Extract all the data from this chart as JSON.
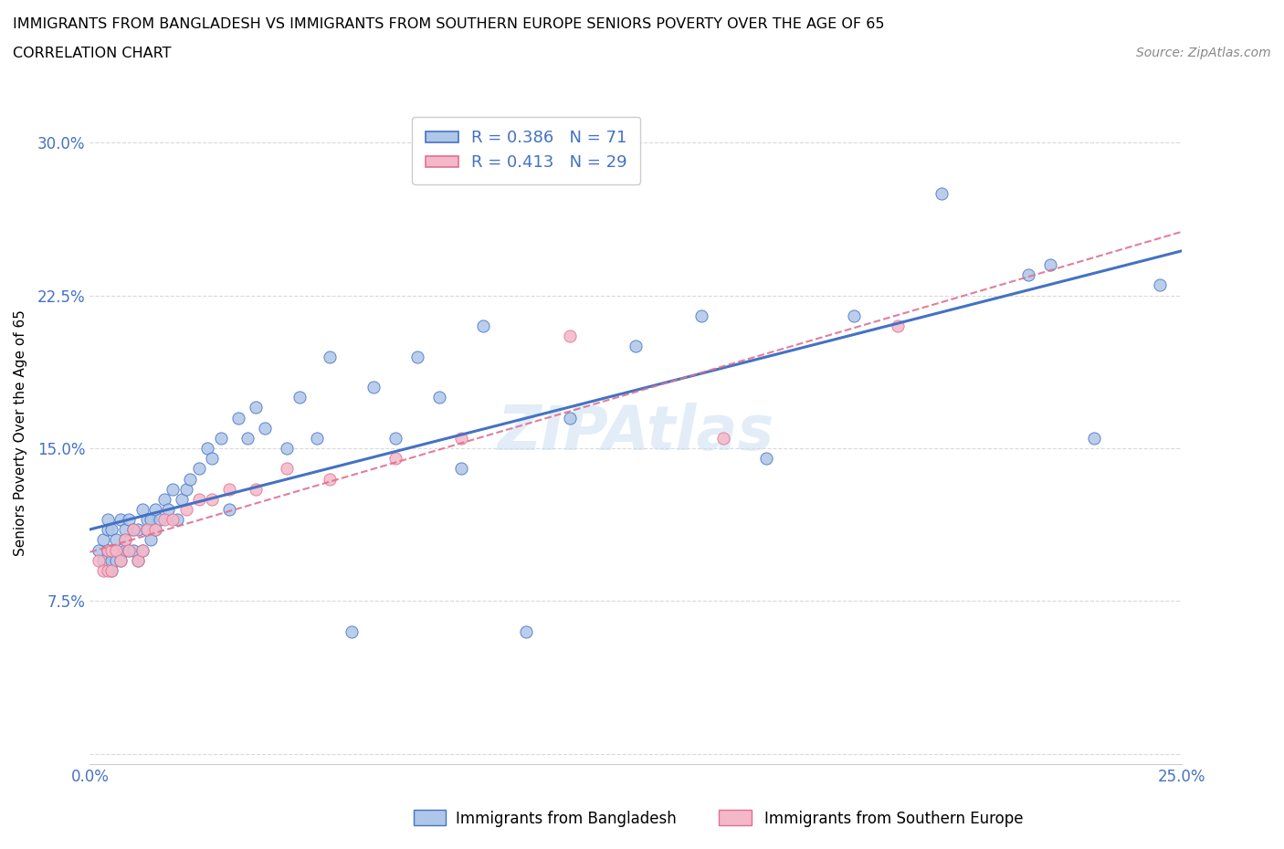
{
  "title_line1": "IMMIGRANTS FROM BANGLADESH VS IMMIGRANTS FROM SOUTHERN EUROPE SENIORS POVERTY OVER THE AGE OF 65",
  "title_line2": "CORRELATION CHART",
  "source": "Source: ZipAtlas.com",
  "ylabel": "Seniors Poverty Over the Age of 65",
  "xlim": [
    0.0,
    0.25
  ],
  "ylim": [
    -0.005,
    0.32
  ],
  "yticks": [
    0.0,
    0.075,
    0.15,
    0.225,
    0.3
  ],
  "ytick_labels": [
    "",
    "7.5%",
    "15.0%",
    "22.5%",
    "30.0%"
  ],
  "xticks": [
    0.0,
    0.025,
    0.05,
    0.075,
    0.1,
    0.125,
    0.15,
    0.175,
    0.2,
    0.225,
    0.25
  ],
  "xtick_labels": [
    "0.0%",
    "",
    "",
    "",
    "",
    "",
    "",
    "",
    "",
    "",
    "25.0%"
  ],
  "legend_R1": "0.386",
  "legend_N1": "71",
  "legend_R2": "0.413",
  "legend_N2": "29",
  "color_bangladesh": "#aec6e8",
  "color_s_europe": "#f4b8c8",
  "color_line_bangladesh": "#4472c4",
  "color_line_s_europe": "#e07090",
  "color_tick_labels": "#4472c4",
  "color_grid": "#d0d0d0",
  "background_color": "#ffffff",
  "bangladesh_x": [
    0.002,
    0.003,
    0.003,
    0.004,
    0.004,
    0.004,
    0.005,
    0.005,
    0.005,
    0.005,
    0.006,
    0.006,
    0.006,
    0.007,
    0.007,
    0.008,
    0.008,
    0.008,
    0.009,
    0.009,
    0.01,
    0.01,
    0.011,
    0.011,
    0.012,
    0.012,
    0.013,
    0.013,
    0.014,
    0.014,
    0.015,
    0.015,
    0.016,
    0.017,
    0.018,
    0.019,
    0.02,
    0.021,
    0.022,
    0.023,
    0.025,
    0.027,
    0.028,
    0.03,
    0.032,
    0.034,
    0.036,
    0.038,
    0.04,
    0.045,
    0.048,
    0.052,
    0.055,
    0.06,
    0.065,
    0.07,
    0.075,
    0.08,
    0.085,
    0.09,
    0.1,
    0.11,
    0.125,
    0.14,
    0.155,
    0.175,
    0.195,
    0.215,
    0.22,
    0.23,
    0.245
  ],
  "bangladesh_y": [
    0.1,
    0.095,
    0.105,
    0.1,
    0.11,
    0.115,
    0.09,
    0.095,
    0.1,
    0.11,
    0.095,
    0.1,
    0.105,
    0.095,
    0.115,
    0.1,
    0.105,
    0.11,
    0.1,
    0.115,
    0.1,
    0.11,
    0.095,
    0.11,
    0.1,
    0.12,
    0.11,
    0.115,
    0.105,
    0.115,
    0.11,
    0.12,
    0.115,
    0.125,
    0.12,
    0.13,
    0.115,
    0.125,
    0.13,
    0.135,
    0.14,
    0.15,
    0.145,
    0.155,
    0.12,
    0.165,
    0.155,
    0.17,
    0.16,
    0.15,
    0.175,
    0.155,
    0.195,
    0.06,
    0.18,
    0.155,
    0.195,
    0.175,
    0.14,
    0.21,
    0.06,
    0.165,
    0.2,
    0.215,
    0.145,
    0.215,
    0.275,
    0.235,
    0.24,
    0.155,
    0.23
  ],
  "s_europe_x": [
    0.002,
    0.003,
    0.004,
    0.004,
    0.005,
    0.005,
    0.006,
    0.007,
    0.008,
    0.009,
    0.01,
    0.011,
    0.012,
    0.013,
    0.015,
    0.017,
    0.019,
    0.022,
    0.025,
    0.028,
    0.032,
    0.038,
    0.045,
    0.055,
    0.07,
    0.085,
    0.11,
    0.145,
    0.185
  ],
  "s_europe_y": [
    0.095,
    0.09,
    0.09,
    0.1,
    0.09,
    0.1,
    0.1,
    0.095,
    0.105,
    0.1,
    0.11,
    0.095,
    0.1,
    0.11,
    0.11,
    0.115,
    0.115,
    0.12,
    0.125,
    0.125,
    0.13,
    0.13,
    0.14,
    0.135,
    0.145,
    0.155,
    0.205,
    0.155,
    0.21
  ]
}
